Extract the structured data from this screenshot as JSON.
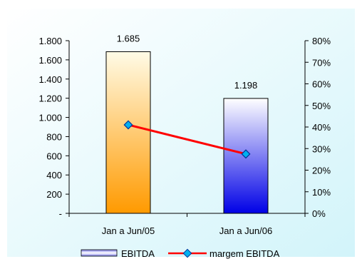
{
  "chart_data": {
    "type": "bar",
    "categories": [
      "Jan a Jun/05",
      "Jan a Jun/06"
    ],
    "series": [
      {
        "name": "EBITDA",
        "type": "bar",
        "axis": "left",
        "values": [
          1685,
          1198
        ],
        "data_labels": [
          "1.685",
          "1.198"
        ]
      },
      {
        "name": "margem EBITDA",
        "type": "line",
        "axis": "right",
        "values": [
          41,
          27.5
        ]
      }
    ],
    "y_left": {
      "min": 0,
      "max": 1800,
      "ticks": [
        0,
        200,
        400,
        600,
        800,
        1000,
        1200,
        1400,
        1600,
        1800
      ],
      "tick_labels": [
        "-",
        "200",
        "400",
        "600",
        "800",
        "1.000",
        "1.200",
        "1.400",
        "1.600",
        "1.800"
      ]
    },
    "y_right": {
      "min": 0,
      "max": 80,
      "ticks": [
        0,
        10,
        20,
        30,
        40,
        50,
        60,
        70,
        80
      ],
      "tick_labels": [
        "0%",
        "10%",
        "20%",
        "30%",
        "40%",
        "50%",
        "60%",
        "70%",
        "80%"
      ]
    },
    "grid": false,
    "legend_position": "bottom",
    "colors": {
      "background_top": "#ffffff",
      "background_bottom": "#d2f4fa",
      "bar1_top": "#fffbe6",
      "bar1_bottom": "#ff9a00",
      "bar2_top": "#ffffff",
      "bar2_bottom": "#0000e6",
      "line": "#ff0000",
      "marker": "#00b0f0",
      "axis": "#000000"
    }
  }
}
